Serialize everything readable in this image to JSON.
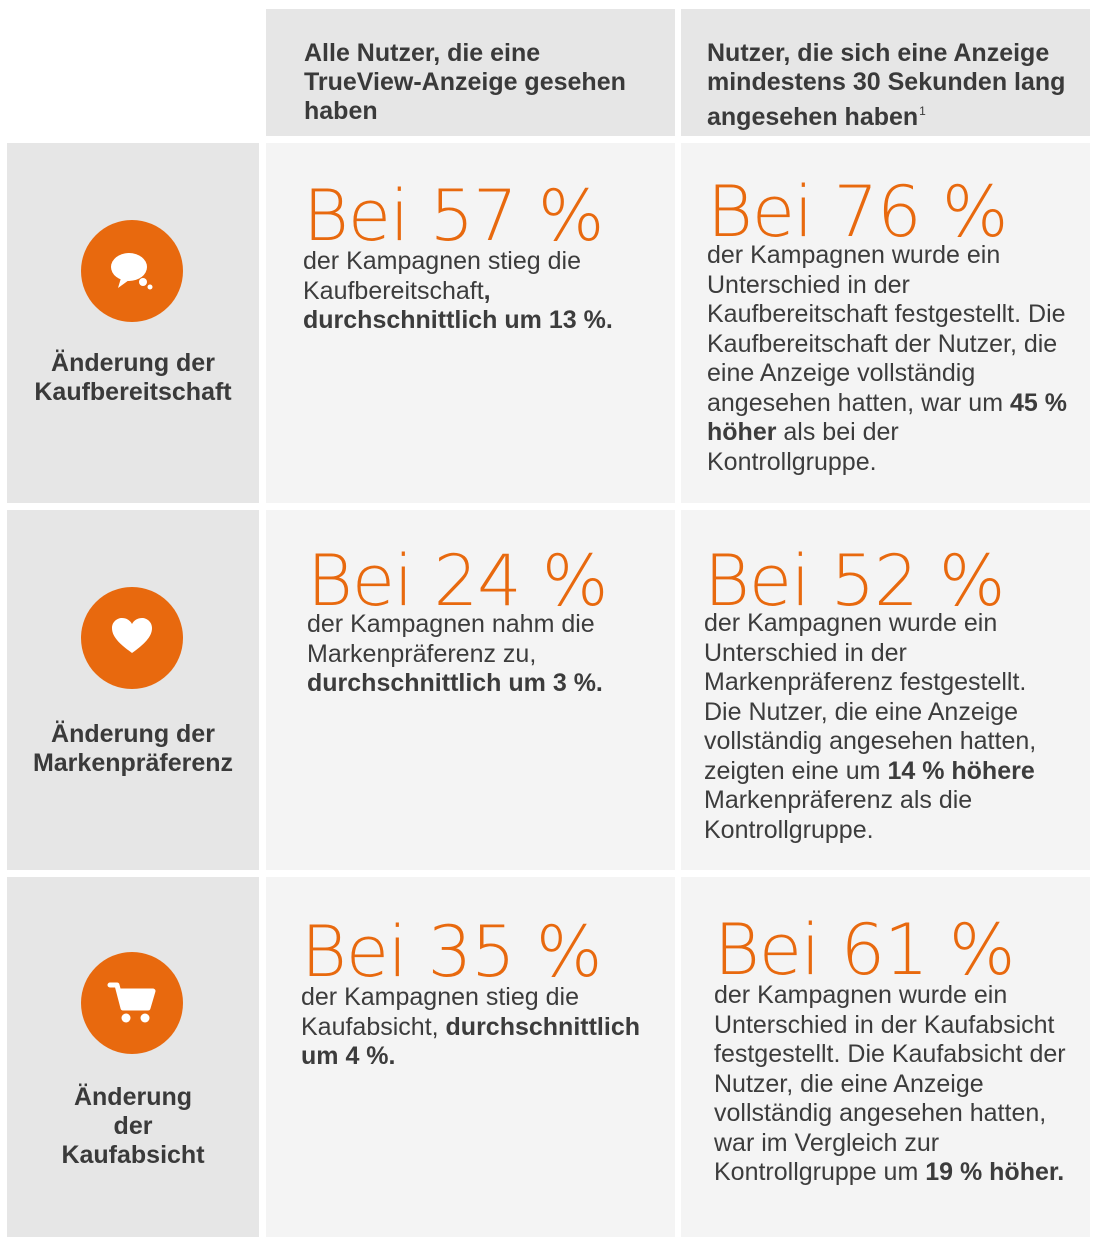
{
  "colors": {
    "accent": "#e8690e",
    "header_bg": "#e6e6e6",
    "label_bg": "#e6e6e6",
    "cell_bg": "#f4f4f4"
  },
  "chart_data": {
    "type": "table",
    "columns": [
      {
        "text": "Alle Nutzer, die eine TrueView-Anzeige gesehen haben",
        "footnote": ""
      },
      {
        "text": "Nutzer, die sich eine Anzeige mindestens 30 Sekunden lang angesehen haben",
        "footnote": "1"
      }
    ],
    "rows": [
      {
        "icon": "speech-bubble-icon",
        "label": "Änderung der Kaufbereitschaft",
        "all_users": {
          "headline": "Bei 57 %",
          "value": 57,
          "parts": [
            {
              "t": "der Kampagnen stieg die Kaufbereitschaft",
              "b": false
            },
            {
              "t": ", durchschnittlich um 13 %.",
              "b": true
            }
          ]
        },
        "viewers_30s": {
          "headline": "Bei 76 %",
          "value": 76,
          "parts": [
            {
              "t": "der Kampagnen wurde ein Unterschied in der Kaufbereitschaft festgestellt. Die Kaufbereitschaft der Nutzer, die eine Anzeige vollständig angesehen hatten, war um ",
              "b": false
            },
            {
              "t": "45 % höher",
              "b": true
            },
            {
              "t": " als bei der Kontrollgruppe.",
              "b": false
            }
          ]
        }
      },
      {
        "icon": "heart-icon",
        "label": "Änderung der Markenpräferenz",
        "all_users": {
          "headline": "Bei 24 %",
          "value": 24,
          "parts": [
            {
              "t": "der Kampagnen nahm die Markenpräferenz zu, ",
              "b": false
            },
            {
              "t": "durchschnittlich um 3 %.",
              "b": true
            }
          ]
        },
        "viewers_30s": {
          "headline": "Bei 52 %",
          "value": 52,
          "parts": [
            {
              "t": "der Kampagnen wurde ein Unterschied in der Markenpräferenz festgestellt. Die Nutzer, die eine Anzeige vollständig angesehen hatten, zeigten eine um ",
              "b": false
            },
            {
              "t": "14 % höhere",
              "b": true
            },
            {
              "t": " Markenpräferenz als die Kontrollgruppe.",
              "b": false
            }
          ]
        }
      },
      {
        "icon": "shopping-cart-icon",
        "label": "Änderung der Kaufabsicht",
        "all_users": {
          "headline": "Bei 35 %",
          "value": 35,
          "parts": [
            {
              "t": "der Kampagnen stieg die Kaufabsicht, ",
              "b": false
            },
            {
              "t": "durchschnittlich um 4 %.",
              "b": true
            }
          ]
        },
        "viewers_30s": {
          "headline": "Bei 61 %",
          "value": 61,
          "parts": [
            {
              "t": "der Kampagnen wurde ein Unterschied in der Kaufabsicht festgestellt. Die Kaufabsicht der Nutzer, die eine Anzeige vollständig angesehen hatten, war im Vergleich zur Kontrollgruppe um ",
              "b": false
            },
            {
              "t": "19 % höher.",
              "b": true
            }
          ]
        }
      }
    ]
  }
}
